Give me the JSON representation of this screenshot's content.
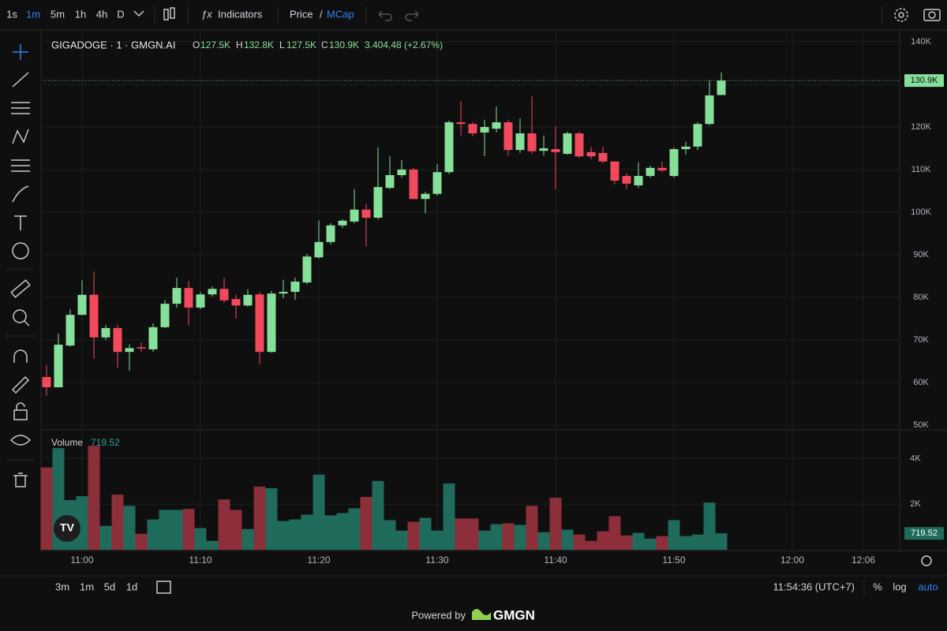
{
  "toolbar": {
    "intervals": [
      "1s",
      "1m",
      "5m",
      "1h",
      "4h",
      "D"
    ],
    "active_interval": 1,
    "indicators": "Indicators",
    "price": "Price",
    "separator": "/",
    "mcap": "MCap"
  },
  "chart_data": {
    "type": "candlestick",
    "title": "GIGADOGE · 1 · GMGN.AI",
    "ohlc_legend": [
      {
        "key": "O",
        "value": "127.5K"
      },
      {
        "key": "H",
        "value": "132.8K"
      },
      {
        "key": "L",
        "value": "127.5K"
      },
      {
        "key": "C",
        "value": "130.9K"
      }
    ],
    "change": "3.404,48 (+2.67%)",
    "x": [
      "10:57",
      "10:58",
      "10:59",
      "11:00",
      "11:01",
      "11:02",
      "11:03",
      "11:04",
      "11:05",
      "11:06",
      "11:07",
      "11:08",
      "11:09",
      "11:10",
      "11:11",
      "11:12",
      "11:13",
      "11:14",
      "11:15",
      "11:16",
      "11:17",
      "11:18",
      "11:19",
      "11:20",
      "11:21",
      "11:22",
      "11:23",
      "11:24",
      "11:25",
      "11:26",
      "11:27",
      "11:28",
      "11:29",
      "11:30",
      "11:31",
      "11:32",
      "11:33",
      "11:34",
      "11:35",
      "11:36",
      "11:37",
      "11:38",
      "11:39",
      "11:40",
      "11:41",
      "11:42",
      "11:43",
      "11:44",
      "11:45",
      "11:46",
      "11:47",
      "11:48",
      "11:49",
      "11:50",
      "11:51",
      "11:52",
      "11:53",
      "11:54"
    ],
    "open": [
      61300,
      58900,
      68700,
      75900,
      80600,
      70600,
      72800,
      67200,
      68300,
      67800,
      73000,
      78500,
      82200,
      77600,
      80700,
      82000,
      79600,
      78100,
      80700,
      67200,
      80900,
      81300,
      83500,
      89400,
      93000,
      96900,
      97800,
      100600,
      98700,
      105700,
      108700,
      110000,
      103100,
      104300,
      109400,
      121100,
      120700,
      118700,
      119600,
      121100,
      114600,
      118500,
      114400,
      114800,
      113700,
      118500,
      114100,
      113900,
      111900,
      108500,
      106300,
      108500,
      110400,
      108500,
      114800,
      115400,
      120700,
      127500
    ],
    "high": [
      64100,
      71500,
      77200,
      84000,
      86000,
      73500,
      73500,
      69000,
      69400,
      73900,
      79400,
      84600,
      83900,
      81300,
      82600,
      84600,
      80600,
      81900,
      81300,
      81500,
      84100,
      84600,
      90200,
      98000,
      97400,
      98300,
      105400,
      102000,
      115200,
      113100,
      112200,
      110400,
      104800,
      111300,
      121500,
      126100,
      121100,
      121700,
      124800,
      121700,
      122000,
      127200,
      118000,
      120200,
      118900,
      118900,
      115400,
      115400,
      111900,
      109100,
      111700,
      110900,
      111900,
      115200,
      116500,
      121100,
      130900,
      132800
    ],
    "low": [
      56900,
      58900,
      68400,
      75800,
      65600,
      70000,
      63500,
      62800,
      67200,
      67200,
      72800,
      77600,
      73500,
      77200,
      80200,
      78700,
      75000,
      77800,
      64300,
      67000,
      79800,
      79400,
      83100,
      89100,
      92400,
      96300,
      97400,
      92000,
      98300,
      105400,
      108100,
      103100,
      99800,
      103900,
      109000,
      118000,
      117800,
      113100,
      118700,
      113300,
      113900,
      113700,
      113300,
      105400,
      113500,
      112800,
      112400,
      111500,
      106500,
      105400,
      105700,
      108100,
      109400,
      108100,
      113500,
      114600,
      120400,
      127500
    ],
    "close": [
      58900,
      68900,
      75900,
      80600,
      70600,
      72800,
      67200,
      68100,
      68000,
      73000,
      78500,
      82200,
      77600,
      80700,
      82000,
      79300,
      78100,
      80600,
      67200,
      80900,
      81300,
      83700,
      89600,
      93000,
      96900,
      98000,
      100600,
      98700,
      105900,
      108700,
      110000,
      103100,
      104300,
      109400,
      121100,
      120700,
      118500,
      120000,
      121100,
      114600,
      118500,
      114300,
      115000,
      114100,
      118500,
      113100,
      113100,
      111900,
      107400,
      106700,
      108500,
      110400,
      109800,
      114800,
      115400,
      120700,
      127400,
      130900
    ],
    "up_color": "#86e09a",
    "down_color": "#f2495c",
    "ylim": [
      48900,
      142400
    ],
    "yticks": [
      {
        "value": 50000,
        "label": "50K"
      },
      {
        "value": 60000,
        "label": "60K"
      },
      {
        "value": 70000,
        "label": "70K"
      },
      {
        "value": 80000,
        "label": "80K"
      },
      {
        "value": 90000,
        "label": "90K"
      },
      {
        "value": 100000,
        "label": "100K"
      },
      {
        "value": 110000,
        "label": "110K"
      },
      {
        "value": 120000,
        "label": "120K"
      },
      {
        "value": 130000,
        "label": "130K"
      },
      {
        "value": 140000,
        "label": "140K"
      }
    ],
    "last_price": {
      "value": 130900,
      "label": "130.9K"
    },
    "xlim": [
      "10:56:44",
      "12:09:04"
    ],
    "xticks": [
      "11:00",
      "11:10",
      "11:20",
      "11:30",
      "11:40",
      "11:50",
      "12:00",
      "12:06"
    ],
    "grid": true,
    "volume": {
      "name": "Volume",
      "up_color": "#1f6b5c",
      "down_color": "#8c2f3a",
      "values": [
        3610,
        4460,
        2180,
        2350,
        4560,
        1050,
        2420,
        1930,
        700,
        1330,
        1750,
        1750,
        1790,
        950,
        390,
        2210,
        1750,
        910,
        2770,
        2700,
        1260,
        1330,
        1540,
        3300,
        1510,
        1610,
        1820,
        2320,
        3020,
        1300,
        840,
        1230,
        1400,
        840,
        2910,
        1370,
        1370,
        840,
        1120,
        1160,
        1090,
        1930,
        770,
        2280,
        880,
        670,
        390,
        810,
        1470,
        630,
        740,
        490,
        600,
        1300,
        600,
        670,
        2070,
        719.52
      ],
      "value_labels": [
        null,
        null,
        null,
        null,
        null,
        null,
        null,
        null,
        null,
        null,
        null,
        null,
        null,
        null,
        null,
        null,
        null,
        null,
        null,
        null,
        null,
        null,
        null,
        null,
        null,
        null,
        null,
        null,
        null,
        null,
        null,
        null,
        null,
        null,
        null,
        null,
        null,
        null,
        null,
        null,
        null,
        null,
        null,
        null,
        null,
        null,
        null,
        null,
        null,
        null,
        null,
        null,
        null,
        null,
        null,
        null,
        null,
        "719.52"
      ],
      "ylim": [
        0,
        5260
      ],
      "yticks": [
        {
          "value": 2000,
          "label": "2K"
        },
        {
          "value": 4000,
          "label": "4K"
        }
      ]
    }
  },
  "bottom_bar": {
    "ranges": [
      "3m",
      "1m",
      "5d",
      "1d"
    ],
    "clock": "11:54:36 (UTC+7)",
    "percent": "%",
    "log": "log",
    "auto": "auto"
  },
  "footer": {
    "powered_by": "Powered by",
    "brand": "GMGN"
  }
}
